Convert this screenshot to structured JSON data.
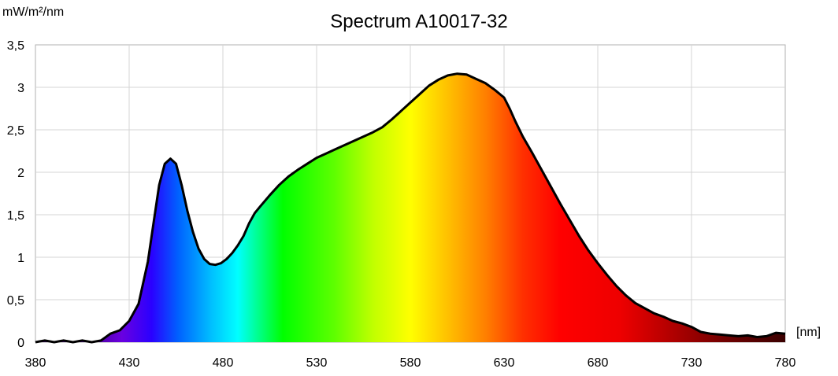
{
  "chart_data": {
    "type": "area",
    "title": "Spectrum A10017-32",
    "ylabel": "mW/m²/nm",
    "xlabel": "[nm]",
    "xlim": [
      380,
      780
    ],
    "ylim": [
      0,
      3.5
    ],
    "x_ticks": [
      380,
      430,
      480,
      530,
      580,
      630,
      680,
      730,
      780
    ],
    "y_ticks": [
      0,
      0.5,
      1,
      1.5,
      2,
      2.5,
      3,
      3.5
    ],
    "y_tick_labels": [
      "0",
      "0,5",
      "1",
      "1,5",
      "2",
      "2,5",
      "3",
      "3,5"
    ],
    "x_tick_labels": [
      "380",
      "430",
      "480",
      "530",
      "580",
      "630",
      "680",
      "730",
      "780"
    ],
    "grid": true,
    "fill": "visible-spectrum-gradient",
    "line_color": "#000000",
    "series": [
      {
        "x": [
          380,
          385,
          390,
          395,
          400,
          405,
          410,
          415,
          420,
          425,
          430,
          435,
          440,
          443,
          446,
          449,
          452,
          455,
          458,
          461,
          464,
          467,
          470,
          473,
          476,
          479,
          482,
          485,
          488,
          491,
          494,
          497,
          500,
          505,
          510,
          515,
          520,
          525,
          530,
          535,
          540,
          545,
          550,
          555,
          560,
          565,
          570,
          575,
          580,
          585,
          590,
          595,
          600,
          605,
          610,
          615,
          620,
          625,
          630,
          633,
          636,
          640,
          645,
          650,
          655,
          660,
          665,
          670,
          675,
          680,
          685,
          690,
          695,
          700,
          705,
          710,
          715,
          720,
          725,
          730,
          735,
          740,
          745,
          750,
          755,
          760,
          765,
          770,
          775,
          780
        ],
        "y": [
          0.0,
          0.02,
          0.0,
          0.02,
          0.0,
          0.02,
          0.0,
          0.02,
          0.1,
          0.14,
          0.25,
          0.45,
          0.95,
          1.4,
          1.85,
          2.1,
          2.16,
          2.1,
          1.85,
          1.55,
          1.3,
          1.1,
          0.98,
          0.92,
          0.91,
          0.93,
          0.98,
          1.05,
          1.14,
          1.25,
          1.4,
          1.52,
          1.6,
          1.73,
          1.85,
          1.95,
          2.03,
          2.1,
          2.17,
          2.22,
          2.27,
          2.32,
          2.37,
          2.42,
          2.47,
          2.53,
          2.62,
          2.72,
          2.82,
          2.92,
          3.02,
          3.09,
          3.14,
          3.16,
          3.15,
          3.1,
          3.05,
          2.97,
          2.88,
          2.75,
          2.6,
          2.42,
          2.23,
          2.03,
          1.83,
          1.63,
          1.44,
          1.25,
          1.08,
          0.93,
          0.79,
          0.66,
          0.55,
          0.46,
          0.4,
          0.34,
          0.3,
          0.25,
          0.22,
          0.18,
          0.12,
          0.1,
          0.09,
          0.08,
          0.07,
          0.08,
          0.06,
          0.07,
          0.11,
          0.1
        ]
      }
    ]
  }
}
